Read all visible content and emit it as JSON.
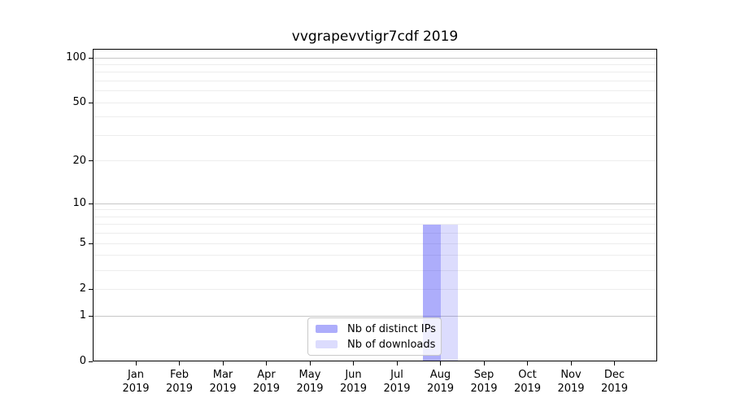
{
  "title": "vvgrapevvtigr7cdf 2019",
  "chart_data": {
    "type": "bar",
    "title": "vvgrapevvtigr7cdf 2019",
    "categories": [
      {
        "month": "Jan",
        "year": "2019"
      },
      {
        "month": "Feb",
        "year": "2019"
      },
      {
        "month": "Mar",
        "year": "2019"
      },
      {
        "month": "Apr",
        "year": "2019"
      },
      {
        "month": "May",
        "year": "2019"
      },
      {
        "month": "Jun",
        "year": "2019"
      },
      {
        "month": "Jul",
        "year": "2019"
      },
      {
        "month": "Aug",
        "year": "2019"
      },
      {
        "month": "Sep",
        "year": "2019"
      },
      {
        "month": "Oct",
        "year": "2019"
      },
      {
        "month": "Nov",
        "year": "2019"
      },
      {
        "month": "Dec",
        "year": "2019"
      }
    ],
    "series": [
      {
        "name": "Nb of distinct IPs",
        "color": "#3c3cf5",
        "alpha": 0.42,
        "values": [
          0,
          0,
          0,
          0,
          0,
          0,
          0,
          7,
          0,
          0,
          0,
          0
        ]
      },
      {
        "name": "Nb of downloads",
        "color": "#3c3cf5",
        "alpha": 0.18,
        "values": [
          0,
          0,
          0,
          0,
          0,
          0,
          0,
          7,
          0,
          0,
          0,
          0
        ]
      }
    ],
    "xlabel": "",
    "ylabel": "",
    "yscale": "log1p",
    "ylim": [
      0,
      115
    ],
    "yticks": [
      0,
      1,
      2,
      5,
      10,
      20,
      50,
      100
    ],
    "grid": {
      "axis": "y",
      "major_ticks": [
        1,
        10,
        100
      ],
      "minor_ticks": [
        2,
        3,
        4,
        5,
        6,
        7,
        8,
        9,
        20,
        30,
        40,
        50,
        60,
        70,
        80,
        90
      ],
      "major_color": "#c6c6c6",
      "minor_color": "#ededed"
    },
    "legend": {
      "position": "lower center",
      "border_color": "#c9c9c9",
      "background": "rgba(255,255,255,0.8)"
    }
  }
}
